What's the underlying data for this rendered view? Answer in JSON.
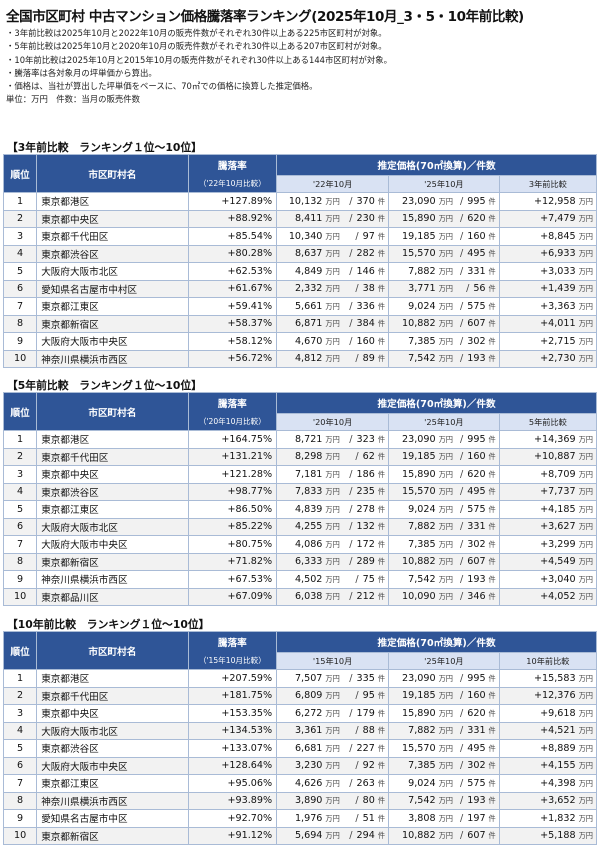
{
  "title": "全国市区町村 中古マンション価格騰落率ランキング(2025年10月_3・5・10年前比較)",
  "notes": [
    "・3年前比較は2025年10月と2022年10月の販売件数がそれぞれ30件以上ある225市区町村が対象。",
    "・5年前比較は2025年10月と2020年10月の販売件数がそれぞれ30件以上ある207市区町村が対象。",
    "・10年前比較は2025年10月と2015年10月の販売件数がそれぞれ30件以上ある144市区町村が対象。",
    "・騰落率は各対象月の坪単価から算出。",
    "・価格は、当社が算出した坪単価をベースに、70㎡での価格に換算した推定価格。",
    "単位：万円　件数：当月の販売件数"
  ],
  "units": {
    "price": "万円",
    "count": "件",
    "separator": "/"
  },
  "sections": [
    {
      "title": "【3年前比較　ランキング１位～10位】",
      "headers": {
        "rank": "順位",
        "city": "市区町村名",
        "rate": "騰落率",
        "rate_sub": "（'22年10月比較）",
        "price": "推定価格(70㎡換算)／件数",
        "past": "'22年10月",
        "current": "'25年10月",
        "diff": "3年前比較"
      },
      "rows": [
        {
          "rank": "1",
          "city": "東京都港区",
          "rate": "+127.89%",
          "past_price": "10,132",
          "past_count": "370",
          "cur_price": "23,090",
          "cur_count": "995",
          "diff": "+12,958"
        },
        {
          "rank": "2",
          "city": "東京都中央区",
          "rate": "+88.92%",
          "past_price": "8,411",
          "past_count": "230",
          "cur_price": "15,890",
          "cur_count": "620",
          "diff": "+7,479"
        },
        {
          "rank": "3",
          "city": "東京都千代田区",
          "rate": "+85.54%",
          "past_price": "10,340",
          "past_count": "97",
          "cur_price": "19,185",
          "cur_count": "160",
          "diff": "+8,845"
        },
        {
          "rank": "4",
          "city": "東京都渋谷区",
          "rate": "+80.28%",
          "past_price": "8,637",
          "past_count": "282",
          "cur_price": "15,570",
          "cur_count": "495",
          "diff": "+6,933"
        },
        {
          "rank": "5",
          "city": "大阪府大阪市北区",
          "rate": "+62.53%",
          "past_price": "4,849",
          "past_count": "146",
          "cur_price": "7,882",
          "cur_count": "331",
          "diff": "+3,033"
        },
        {
          "rank": "6",
          "city": "愛知県名古屋市中村区",
          "rate": "+61.67%",
          "past_price": "2,332",
          "past_count": "38",
          "cur_price": "3,771",
          "cur_count": "56",
          "diff": "+1,439"
        },
        {
          "rank": "7",
          "city": "東京都江東区",
          "rate": "+59.41%",
          "past_price": "5,661",
          "past_count": "336",
          "cur_price": "9,024",
          "cur_count": "575",
          "diff": "+3,363"
        },
        {
          "rank": "8",
          "city": "東京都新宿区",
          "rate": "+58.37%",
          "past_price": "6,871",
          "past_count": "384",
          "cur_price": "10,882",
          "cur_count": "607",
          "diff": "+4,011"
        },
        {
          "rank": "9",
          "city": "大阪府大阪市中央区",
          "rate": "+58.12%",
          "past_price": "4,670",
          "past_count": "160",
          "cur_price": "7,385",
          "cur_count": "302",
          "diff": "+2,715"
        },
        {
          "rank": "10",
          "city": "神奈川県横浜市西区",
          "rate": "+56.72%",
          "past_price": "4,812",
          "past_count": "89",
          "cur_price": "7,542",
          "cur_count": "193",
          "diff": "+2,730"
        }
      ]
    },
    {
      "title": "【5年前比較　ランキング１位～10位】",
      "headers": {
        "rank": "順位",
        "city": "市区町村名",
        "rate": "騰落率",
        "rate_sub": "（'20年10月比較）",
        "price": "推定価格(70㎡換算)／件数",
        "past": "'20年10月",
        "current": "'25年10月",
        "diff": "5年前比較"
      },
      "rows": [
        {
          "rank": "1",
          "city": "東京都港区",
          "rate": "+164.75%",
          "past_price": "8,721",
          "past_count": "323",
          "cur_price": "23,090",
          "cur_count": "995",
          "diff": "+14,369"
        },
        {
          "rank": "2",
          "city": "東京都千代田区",
          "rate": "+131.21%",
          "past_price": "8,298",
          "past_count": "62",
          "cur_price": "19,185",
          "cur_count": "160",
          "diff": "+10,887"
        },
        {
          "rank": "3",
          "city": "東京都中央区",
          "rate": "+121.28%",
          "past_price": "7,181",
          "past_count": "186",
          "cur_price": "15,890",
          "cur_count": "620",
          "diff": "+8,709"
        },
        {
          "rank": "4",
          "city": "東京都渋谷区",
          "rate": "+98.77%",
          "past_price": "7,833",
          "past_count": "235",
          "cur_price": "15,570",
          "cur_count": "495",
          "diff": "+7,737"
        },
        {
          "rank": "5",
          "city": "東京都江東区",
          "rate": "+86.50%",
          "past_price": "4,839",
          "past_count": "278",
          "cur_price": "9,024",
          "cur_count": "575",
          "diff": "+4,185"
        },
        {
          "rank": "6",
          "city": "大阪府大阪市北区",
          "rate": "+85.22%",
          "past_price": "4,255",
          "past_count": "132",
          "cur_price": "7,882",
          "cur_count": "331",
          "diff": "+3,627"
        },
        {
          "rank": "7",
          "city": "大阪府大阪市中央区",
          "rate": "+80.75%",
          "past_price": "4,086",
          "past_count": "172",
          "cur_price": "7,385",
          "cur_count": "302",
          "diff": "+3,299"
        },
        {
          "rank": "8",
          "city": "東京都新宿区",
          "rate": "+71.82%",
          "past_price": "6,333",
          "past_count": "289",
          "cur_price": "10,882",
          "cur_count": "607",
          "diff": "+4,549"
        },
        {
          "rank": "9",
          "city": "神奈川県横浜市西区",
          "rate": "+67.53%",
          "past_price": "4,502",
          "past_count": "75",
          "cur_price": "7,542",
          "cur_count": "193",
          "diff": "+3,040"
        },
        {
          "rank": "10",
          "city": "東京都品川区",
          "rate": "+67.09%",
          "past_price": "6,038",
          "past_count": "212",
          "cur_price": "10,090",
          "cur_count": "346",
          "diff": "+4,052"
        }
      ]
    },
    {
      "title": "【10年前比較　ランキング１位～10位】",
      "headers": {
        "rank": "順位",
        "city": "市区町村名",
        "rate": "騰落率",
        "rate_sub": "（'15年10月比較）",
        "price": "推定価格(70㎡換算)／件数",
        "past": "'15年10月",
        "current": "'25年10月",
        "diff": "10年前比較"
      },
      "rows": [
        {
          "rank": "1",
          "city": "東京都港区",
          "rate": "+207.59%",
          "past_price": "7,507",
          "past_count": "335",
          "cur_price": "23,090",
          "cur_count": "995",
          "diff": "+15,583"
        },
        {
          "rank": "2",
          "city": "東京都千代田区",
          "rate": "+181.75%",
          "past_price": "6,809",
          "past_count": "95",
          "cur_price": "19,185",
          "cur_count": "160",
          "diff": "+12,376"
        },
        {
          "rank": "3",
          "city": "東京都中央区",
          "rate": "+153.35%",
          "past_price": "6,272",
          "past_count": "179",
          "cur_price": "15,890",
          "cur_count": "620",
          "diff": "+9,618"
        },
        {
          "rank": "4",
          "city": "大阪府大阪市北区",
          "rate": "+134.53%",
          "past_price": "3,361",
          "past_count": "88",
          "cur_price": "7,882",
          "cur_count": "331",
          "diff": "+4,521"
        },
        {
          "rank": "5",
          "city": "東京都渋谷区",
          "rate": "+133.07%",
          "past_price": "6,681",
          "past_count": "227",
          "cur_price": "15,570",
          "cur_count": "495",
          "diff": "+8,889"
        },
        {
          "rank": "6",
          "city": "大阪府大阪市中央区",
          "rate": "+128.64%",
          "past_price": "3,230",
          "past_count": "92",
          "cur_price": "7,385",
          "cur_count": "302",
          "diff": "+4,155"
        },
        {
          "rank": "7",
          "city": "東京都江東区",
          "rate": "+95.06%",
          "past_price": "4,626",
          "past_count": "263",
          "cur_price": "9,024",
          "cur_count": "575",
          "diff": "+4,398"
        },
        {
          "rank": "8",
          "city": "神奈川県横浜市西区",
          "rate": "+93.89%",
          "past_price": "3,890",
          "past_count": "80",
          "cur_price": "7,542",
          "cur_count": "193",
          "diff": "+3,652"
        },
        {
          "rank": "9",
          "city": "愛知県名古屋市中区",
          "rate": "+92.70%",
          "past_price": "1,976",
          "past_count": "51",
          "cur_price": "3,808",
          "cur_count": "197",
          "diff": "+1,832"
        },
        {
          "rank": "10",
          "city": "東京都新宿区",
          "rate": "+91.12%",
          "past_price": "5,694",
          "past_count": "294",
          "cur_price": "10,882",
          "cur_count": "607",
          "diff": "+5,188"
        }
      ]
    }
  ]
}
